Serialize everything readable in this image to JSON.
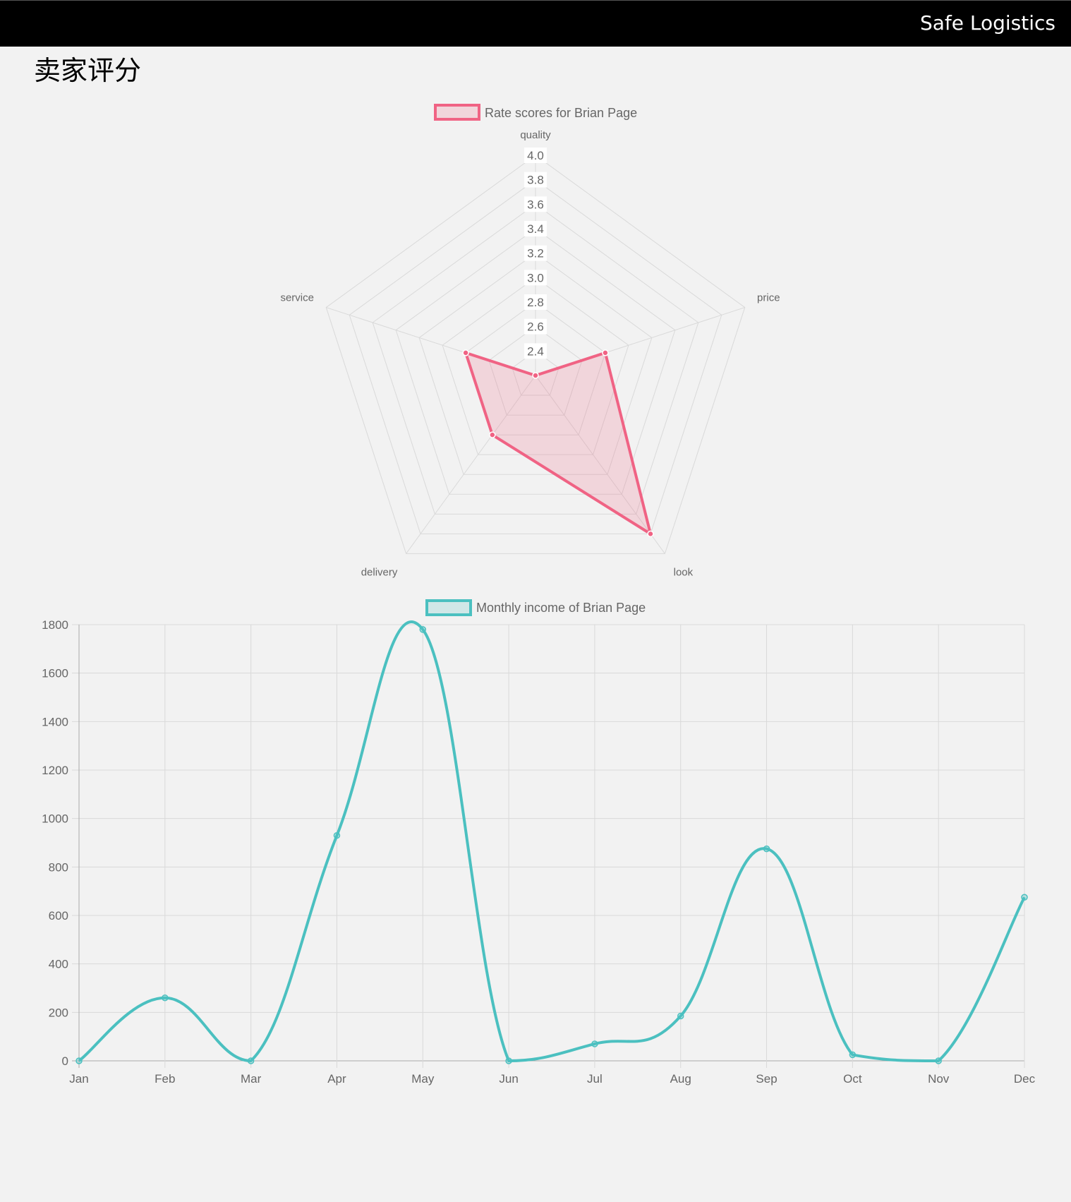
{
  "navbar": {
    "brand": "Safe Logistics"
  },
  "page": {
    "title": "卖家评分"
  },
  "colors": {
    "radar_line": "#f06384",
    "radar_fill": "rgba(240,99,132,0.2)",
    "income_line": "#4bc0c0",
    "grid": "#d9d9d9",
    "background": "#f2f2f2"
  },
  "chart_data": [
    {
      "type": "radar",
      "legend": "Rate scores for Brian Page",
      "labels": [
        "quality",
        "price",
        "look",
        "delivery",
        "service"
      ],
      "values": [
        2.2,
        2.8,
        3.8,
        2.8,
        2.8
      ],
      "scale": {
        "min": 2.2,
        "max": 4.0,
        "ticks": [
          "2.4",
          "2.6",
          "2.8",
          "3.0",
          "3.2",
          "3.4",
          "3.6",
          "3.8",
          "4.0"
        ]
      }
    },
    {
      "type": "line",
      "legend": "Monthly income of Brian Page",
      "categories": [
        "Jan",
        "Feb",
        "Mar",
        "Apr",
        "May",
        "Jun",
        "Jul",
        "Aug",
        "Sep",
        "Oct",
        "Nov",
        "Dec"
      ],
      "values": [
        0,
        260,
        0,
        930,
        1780,
        0,
        70,
        185,
        875,
        25,
        0,
        675
      ],
      "ylim": [
        0,
        1800
      ],
      "yticks": [
        "0",
        "200",
        "400",
        "600",
        "800",
        "1000",
        "1200",
        "1400",
        "1600",
        "1800"
      ],
      "grid": true,
      "legend_position": "top"
    }
  ]
}
